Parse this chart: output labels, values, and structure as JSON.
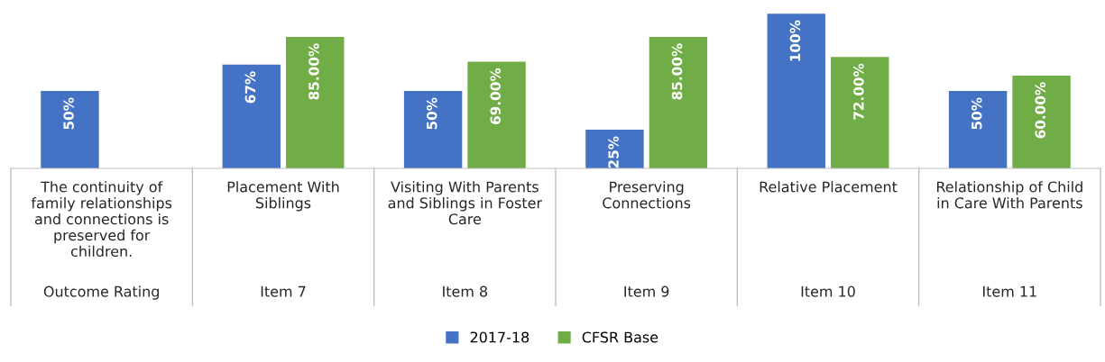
{
  "chart_data": {
    "type": "bar",
    "categories": [
      "Outcome Rating",
      "Item 7",
      "Item 8",
      "Item 9",
      "Item 10",
      "Item 11"
    ],
    "annotations": [
      "The continuity of\nfamily relationships\nand connections is\npreserved for\nchildren.",
      "Placement With\nSiblings",
      "Visiting With Parents\nand Siblings in Foster\nCare",
      "Preserving\nConnections",
      "Relative Placement",
      "Relationship of Child\nin Care With Parents"
    ],
    "series": [
      {
        "name": "2017-18",
        "color": "#4472c4",
        "values": [
          50,
          67,
          50,
          25,
          100,
          50
        ],
        "value_labels": [
          "50%",
          "67%",
          "50%",
          "25%",
          "100%",
          "50%"
        ]
      },
      {
        "name": "CFSR Base",
        "color": "#70ad47",
        "values": [
          null,
          85,
          69,
          85,
          72,
          60
        ],
        "value_labels": [
          null,
          "85.00%",
          "69.00%",
          "85.00%",
          "72.00%",
          "60.00%"
        ]
      }
    ],
    "legend": "bottom"
  }
}
